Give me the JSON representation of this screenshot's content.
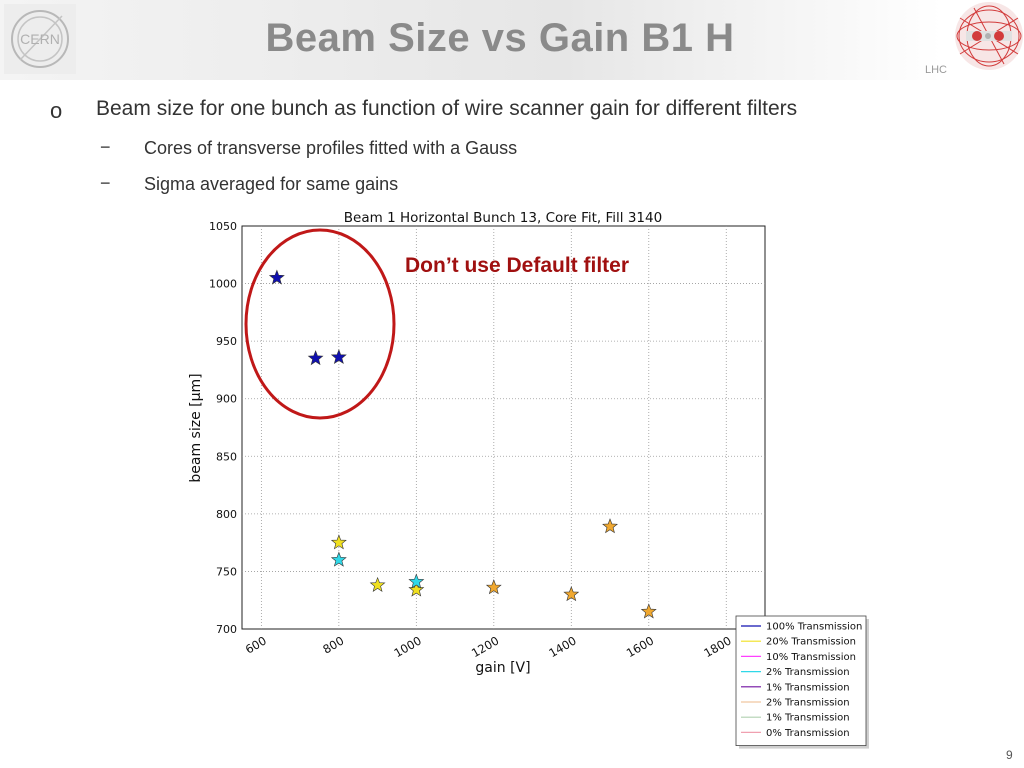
{
  "header": {
    "title": "Beam Size vs Gain B1 H",
    "lhc_label": "LHC",
    "cern_logo_text": "CERN"
  },
  "bullets": {
    "main_marker": "o",
    "main": "Beam size for one bunch as function of wire scanner gain for different filters",
    "sub_marker": "−",
    "sub": [
      "Cores of transverse profiles fitted with a Gauss",
      "Sigma averaged for same gains"
    ]
  },
  "annotation": "Don’t use Default filter",
  "page_number": "9",
  "chart_data": {
    "type": "scatter",
    "title": "Beam 1 Horizontal Bunch 13, Core Fit, Fill 3140",
    "xlabel": "gain [V]",
    "ylabel": "beam size [μm]",
    "xlim": [
      550,
      1900
    ],
    "ylim": [
      700,
      1050
    ],
    "x_ticks": [
      600,
      800,
      1000,
      1200,
      1400,
      1600,
      1800
    ],
    "y_ticks": [
      700,
      750,
      800,
      850,
      900,
      950,
      1000,
      1050
    ],
    "grid": true,
    "legend_position": "bottom-right",
    "marker": "star",
    "series": [
      {
        "name": "100% Transmission",
        "color": "#1010b0",
        "x": [
          640,
          740,
          800
        ],
        "y": [
          1005,
          935,
          936
        ]
      },
      {
        "name": "20% Transmission",
        "color": "#f0e020",
        "x": [
          800,
          900,
          1000
        ],
        "y": [
          775,
          738,
          734
        ]
      },
      {
        "name": "10% Transmission",
        "color": "#ff40ff",
        "x": [],
        "y": []
      },
      {
        "name": "2% Transmission",
        "color": "#30d8e8",
        "x": [
          800,
          1000
        ],
        "y": [
          760,
          741
        ]
      },
      {
        "name": "1% Transmission",
        "color": "#7010a0",
        "x": [],
        "y": []
      },
      {
        "name": "2% Transmission",
        "color": "#f0c8a0",
        "x": [
          1200,
          1400,
          1500,
          1600
        ],
        "y": [
          736,
          730,
          789,
          715
        ]
      },
      {
        "name": "1% Transmission",
        "color": "#b0d0b0",
        "x": [],
        "y": []
      },
      {
        "name": "0% Transmission",
        "color": "#f0a0b0",
        "x": [],
        "y": []
      }
    ],
    "point_fill_override": {
      "series_index": 5,
      "fill": "#f0a830"
    },
    "highlight_ellipse": {
      "around_series": 0,
      "color": "#c01818"
    }
  }
}
